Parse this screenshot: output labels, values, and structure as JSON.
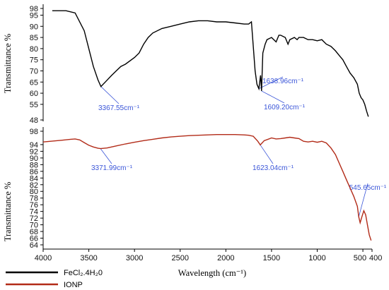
{
  "chart_data": [
    {
      "type": "line",
      "ylabel": "Transmittance %",
      "xlim": [
        4000,
        400
      ],
      "ylim": [
        48,
        98
      ],
      "yticks": [
        "98",
        "95",
        "90",
        "85",
        "80",
        "75",
        "70",
        "65",
        "60",
        "55",
        "48"
      ],
      "series": [
        {
          "name": "FeCl₂.4H₂0",
          "color": "#000000",
          "x": [
            3900,
            3750,
            3650,
            3550,
            3450,
            3400,
            3367.55,
            3320,
            3250,
            3200,
            3150,
            3100,
            3000,
            2950,
            2900,
            2850,
            2800,
            2700,
            2600,
            2500,
            2400,
            2300,
            2200,
            2100,
            2000,
            1900,
            1800,
            1750,
            1720,
            1680,
            1660,
            1638.96,
            1620,
            1609.2,
            1595,
            1570,
            1550,
            1500,
            1450,
            1420,
            1400,
            1350,
            1320,
            1300,
            1250,
            1220,
            1200,
            1150,
            1100,
            1050,
            1000,
            950,
            900,
            850,
            800,
            760,
            720,
            680,
            640,
            600,
            560,
            540,
            520,
            500,
            480,
            460,
            440
          ],
          "y": [
            97,
            97,
            96,
            88,
            72,
            66,
            63,
            65,
            68,
            70,
            72,
            73,
            76,
            78,
            82,
            85,
            87,
            89,
            90,
            91,
            92,
            92.5,
            92.5,
            92,
            92,
            91.5,
            91,
            91,
            92,
            70,
            64,
            62,
            68,
            61,
            78,
            82,
            84,
            85,
            83,
            86,
            86,
            85,
            82,
            84,
            85,
            84,
            85,
            85,
            84,
            84,
            83.5,
            84,
            82,
            81,
            79,
            77,
            75,
            72,
            69,
            67,
            64,
            60,
            58,
            57,
            55,
            52,
            49.5
          ]
        }
      ],
      "annotations": [
        {
          "text": "3367.55cm⁻¹",
          "x": 3367.55
        },
        {
          "text": "1638.96cm⁻¹",
          "x": 1638.96
        },
        {
          "text": "1609.20cm⁻¹",
          "x": 1609.2
        }
      ]
    },
    {
      "type": "line",
      "xlabel": "Wavelength (cm⁻¹)",
      "ylabel": "Transmittance %",
      "xlim": [
        4000,
        400
      ],
      "ylim": [
        64,
        98
      ],
      "xticks": [
        "4000",
        "3500",
        "3000",
        "2500",
        "2000",
        "1500",
        "1000",
        "500",
        "400"
      ],
      "yticks": [
        "98",
        "94",
        "92",
        "90",
        "88",
        "86",
        "84",
        "82",
        "80",
        "78",
        "76",
        "74",
        "72",
        "70",
        "68",
        "66",
        "64"
      ],
      "series": [
        {
          "name": "IONP",
          "color": "#b22b18",
          "x": [
            4000,
            3800,
            3700,
            3650,
            3600,
            3550,
            3500,
            3450,
            3400,
            3371.99,
            3300,
            3200,
            3100,
            3000,
            2900,
            2800,
            2700,
            2600,
            2500,
            2400,
            2300,
            2200,
            2100,
            2000,
            1900,
            1800,
            1750,
            1700,
            1650,
            1623.04,
            1580,
            1500,
            1450,
            1400,
            1350,
            1300,
            1250,
            1200,
            1150,
            1100,
            1050,
            1000,
            950,
            900,
            850,
            800,
            760,
            720,
            680,
            640,
            600,
            560,
            545.65,
            530,
            510,
            490,
            470,
            450,
            430,
            410
          ],
          "y": [
            94.8,
            95.3,
            95.6,
            95.7,
            95.4,
            94.6,
            93.8,
            93.3,
            92.9,
            92.8,
            93,
            93.6,
            94.2,
            94.7,
            95.2,
            95.6,
            96,
            96.3,
            96.5,
            96.7,
            96.8,
            96.9,
            97,
            97,
            97,
            96.9,
            96.8,
            96.5,
            95,
            93.9,
            95.2,
            96,
            95.7,
            95.8,
            96,
            96.2,
            96,
            95.8,
            95,
            94.8,
            95,
            94.7,
            95,
            94.5,
            93,
            91,
            88.5,
            86,
            83.5,
            81,
            78.5,
            75.5,
            72.4,
            70.6,
            72.5,
            74.2,
            73,
            70,
            67,
            65.3
          ]
        }
      ],
      "annotations": [
        {
          "text": "3371.99cm⁻¹",
          "x": 3371.99
        },
        {
          "text": "1623.04cm⁻¹",
          "x": 1623.04
        },
        {
          "text": "545.65cm⁻¹",
          "x": 545.65
        }
      ]
    }
  ],
  "legend": [
    {
      "label": "FeCl₂.4H₂0",
      "color": "#000000"
    },
    {
      "label": "IONP",
      "color": "#b22b18"
    }
  ]
}
